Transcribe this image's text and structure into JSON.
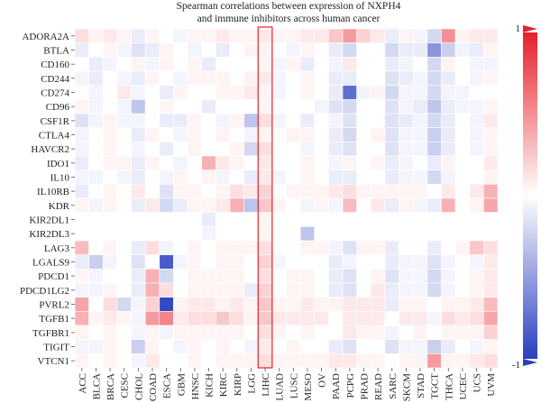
{
  "chart_data": {
    "type": "heatmap",
    "title_lines": [
      "Spearman correlations between expression of NXPH4",
      "and immune inhibitors across human cancer"
    ],
    "rows": [
      "ADORA2A",
      "BTLA",
      "CD160",
      "CD244",
      "CD274",
      "CD96",
      "CSF1R",
      "CTLA4",
      "HAVCR2",
      "IDO1",
      "IL10",
      "IL10RB",
      "KDR",
      "KIR2DL1",
      "KIR2DL3",
      "LAG3",
      "LGALS9",
      "PDCD1",
      "PDCD1LG2",
      "PVRL2",
      "TGFB1",
      "TGFBR1",
      "TIGIT",
      "VTCN1"
    ],
    "columns": [
      "ACC",
      "BLCA",
      "BRCA",
      "CESC",
      "CHOL",
      "COAD",
      "ESCA",
      "GBM",
      "HNSC",
      "KICH",
      "KIRC",
      "KIRP",
      "LGG",
      "LIHC",
      "LUAD",
      "LUSC",
      "MESO",
      "OV",
      "PAAD",
      "PCPG",
      "PRAD",
      "READ",
      "SARC",
      "SKCM",
      "STAD",
      "TGCT",
      "THCA",
      "UCEC",
      "UCS",
      "UVM"
    ],
    "values": [
      [
        0.15,
        0.05,
        0.1,
        0.05,
        -0.1,
        0.05,
        0.0,
        -0.05,
        0.05,
        0.05,
        0.1,
        0.05,
        0.05,
        0.1,
        0.05,
        0.05,
        0.1,
        0.1,
        0.25,
        0.45,
        0.2,
        0.1,
        -0.1,
        0.05,
        -0.05,
        -0.2,
        0.5,
        0.05,
        0.1,
        0.1
      ],
      [
        -0.1,
        0.0,
        0.05,
        -0.05,
        -0.15,
        -0.1,
        0.05,
        0.0,
        -0.05,
        0.0,
        -0.1,
        0.0,
        0.05,
        0.05,
        0.0,
        -0.05,
        0.05,
        0.0,
        -0.1,
        -0.2,
        0.0,
        0.0,
        -0.2,
        -0.1,
        -0.1,
        -0.55,
        -0.25,
        -0.05,
        -0.1,
        0.05
      ],
      [
        0.0,
        -0.1,
        -0.05,
        0.0,
        0.05,
        -0.05,
        0.05,
        0.0,
        0.05,
        -0.1,
        0.0,
        0.0,
        0.0,
        0.05,
        -0.05,
        0.05,
        -0.1,
        0.0,
        -0.05,
        0.1,
        0.0,
        0.0,
        -0.1,
        -0.05,
        0.0,
        -0.2,
        0.05,
        0.0,
        -0.05,
        -0.05
      ],
      [
        -0.05,
        -0.1,
        0.0,
        -0.05,
        -0.1,
        0.05,
        0.0,
        -0.05,
        0.05,
        0.05,
        0.05,
        0.0,
        0.05,
        0.1,
        -0.05,
        0.0,
        0.05,
        0.0,
        -0.1,
        -0.1,
        0.0,
        0.0,
        -0.15,
        -0.1,
        -0.05,
        -0.2,
        -0.1,
        0.0,
        -0.05,
        0.05
      ],
      [
        0.0,
        -0.05,
        0.0,
        0.1,
        -0.05,
        0.0,
        -0.1,
        0.05,
        0.0,
        0.0,
        0.05,
        0.05,
        0.1,
        0.05,
        -0.05,
        0.0,
        0.05,
        0.0,
        -0.1,
        -0.75,
        -0.05,
        0.05,
        -0.2,
        -0.05,
        -0.05,
        -0.2,
        -0.05,
        -0.05,
        0.0,
        0.0
      ],
      [
        0.05,
        -0.05,
        0.0,
        -0.05,
        -0.3,
        0.0,
        0.05,
        0.0,
        0.0,
        -0.1,
        0.0,
        0.0,
        0.0,
        0.05,
        0.0,
        0.0,
        0.0,
        -0.05,
        -0.15,
        -0.2,
        0.0,
        0.0,
        -0.15,
        -0.05,
        -0.1,
        -0.3,
        -0.1,
        -0.05,
        -0.05,
        0.05
      ],
      [
        -0.15,
        -0.05,
        0.05,
        -0.05,
        -0.05,
        0.0,
        -0.1,
        -0.1,
        0.05,
        0.0,
        -0.05,
        0.05,
        -0.3,
        0.15,
        -0.05,
        0.0,
        -0.1,
        0.0,
        -0.05,
        -0.15,
        0.0,
        0.0,
        -0.15,
        -0.1,
        -0.05,
        -0.2,
        -0.1,
        0.0,
        -0.05,
        0.1
      ],
      [
        -0.05,
        0.0,
        0.05,
        0.0,
        -0.1,
        0.05,
        0.0,
        -0.05,
        0.05,
        0.0,
        0.05,
        0.0,
        -0.05,
        0.05,
        0.0,
        0.05,
        0.05,
        0.0,
        -0.1,
        -0.2,
        0.0,
        0.05,
        -0.15,
        -0.05,
        -0.05,
        -0.25,
        -0.1,
        0.0,
        -0.05,
        0.05
      ],
      [
        -0.05,
        0.0,
        0.05,
        0.0,
        -0.05,
        0.0,
        -0.1,
        0.0,
        0.05,
        0.0,
        0.0,
        0.05,
        -0.2,
        0.15,
        0.0,
        0.0,
        -0.05,
        0.0,
        -0.1,
        -0.15,
        0.0,
        0.0,
        -0.15,
        -0.05,
        -0.05,
        -0.25,
        -0.1,
        0.0,
        -0.05,
        0.05
      ],
      [
        -0.1,
        0.0,
        0.05,
        0.05,
        -0.1,
        0.05,
        0.0,
        -0.05,
        0.0,
        0.35,
        0.1,
        0.05,
        0.0,
        0.1,
        0.0,
        0.0,
        0.05,
        0.0,
        -0.05,
        0.05,
        0.0,
        0.05,
        -0.1,
        -0.05,
        0.0,
        -0.1,
        0.05,
        0.0,
        0.0,
        0.1
      ],
      [
        -0.05,
        -0.05,
        0.0,
        -0.05,
        -0.1,
        0.0,
        -0.05,
        0.05,
        0.0,
        0.05,
        -0.05,
        0.0,
        -0.1,
        0.1,
        -0.05,
        0.0,
        0.05,
        0.0,
        -0.1,
        -0.1,
        0.0,
        0.0,
        -0.1,
        -0.05,
        -0.05,
        -0.2,
        -0.05,
        0.0,
        0.0,
        0.05
      ],
      [
        -0.1,
        0.0,
        0.05,
        0.0,
        0.1,
        0.0,
        -0.15,
        0.05,
        0.05,
        0.0,
        0.05,
        0.15,
        0.1,
        0.2,
        0.0,
        0.05,
        0.05,
        0.05,
        0.1,
        0.15,
        0.05,
        0.05,
        0.05,
        0.05,
        0.05,
        0.0,
        0.1,
        0.0,
        0.1,
        0.35
      ],
      [
        0.05,
        -0.05,
        0.05,
        0.0,
        -0.1,
        0.1,
        -0.2,
        -0.1,
        0.05,
        0.05,
        0.1,
        0.35,
        -0.3,
        0.25,
        0.05,
        0.0,
        -0.05,
        0.05,
        -0.05,
        0.3,
        0.0,
        0.1,
        -0.1,
        0.05,
        -0.05,
        -0.1,
        0.35,
        0.0,
        0.05,
        0.4
      ],
      [
        0.0,
        0.0,
        0.0,
        0.0,
        0.0,
        0.0,
        0.0,
        0.0,
        0.0,
        -0.1,
        0.0,
        0.0,
        0.0,
        0.05,
        0.0,
        0.0,
        0.0,
        0.0,
        0.0,
        0.0,
        0.0,
        0.0,
        0.0,
        0.0,
        0.0,
        0.0,
        0.0,
        0.0,
        0.0,
        0.0
      ],
      [
        0.0,
        0.0,
        0.0,
        0.0,
        0.0,
        0.0,
        0.0,
        0.0,
        0.0,
        -0.05,
        0.0,
        0.0,
        0.0,
        0.05,
        0.0,
        0.0,
        -0.3,
        0.0,
        0.0,
        0.0,
        0.0,
        0.0,
        0.0,
        0.0,
        0.0,
        0.0,
        0.0,
        0.0,
        0.0,
        0.0
      ],
      [
        0.3,
        0.0,
        0.05,
        0.0,
        -0.1,
        0.15,
        -0.05,
        0.0,
        0.05,
        0.0,
        0.05,
        0.05,
        0.05,
        0.15,
        0.0,
        0.0,
        0.05,
        0.05,
        -0.05,
        -0.15,
        0.05,
        0.05,
        -0.1,
        0.0,
        0.0,
        -0.1,
        0.0,
        0.05,
        0.25,
        0.15
      ],
      [
        -0.1,
        -0.25,
        -0.05,
        0.0,
        -0.15,
        0.0,
        -0.85,
        -0.05,
        0.05,
        0.0,
        0.05,
        0.05,
        0.0,
        0.2,
        -0.05,
        0.0,
        0.0,
        0.0,
        -0.1,
        -0.05,
        0.0,
        0.0,
        -0.1,
        -0.05,
        -0.05,
        -0.15,
        -0.05,
        0.0,
        -0.05,
        0.1
      ],
      [
        0.05,
        -0.05,
        0.0,
        0.0,
        -0.1,
        0.35,
        -0.2,
        0.0,
        0.05,
        0.05,
        0.05,
        0.05,
        0.0,
        0.15,
        0.0,
        0.05,
        0.05,
        0.0,
        -0.1,
        -0.15,
        0.0,
        0.05,
        -0.15,
        -0.05,
        -0.05,
        -0.2,
        -0.05,
        0.0,
        0.05,
        0.1
      ],
      [
        -0.05,
        -0.05,
        0.05,
        0.0,
        -0.1,
        0.35,
        0.15,
        0.0,
        0.05,
        0.05,
        0.05,
        0.05,
        -0.1,
        0.2,
        0.0,
        0.05,
        0.05,
        0.0,
        -0.1,
        -0.15,
        0.0,
        0.1,
        -0.1,
        -0.05,
        -0.05,
        -0.2,
        -0.05,
        0.0,
        0.05,
        0.1
      ],
      [
        0.4,
        0.0,
        0.15,
        -0.2,
        -0.05,
        0.2,
        -0.95,
        0.05,
        0.1,
        0.1,
        0.05,
        0.1,
        0.05,
        0.25,
        0.05,
        0.05,
        0.1,
        0.05,
        0.05,
        0.1,
        0.1,
        0.1,
        -0.1,
        0.05,
        0.05,
        0.0,
        0.05,
        0.05,
        0.1,
        0.3
      ],
      [
        0.35,
        0.05,
        0.1,
        0.05,
        -0.05,
        0.45,
        0.55,
        0.1,
        0.15,
        0.15,
        0.25,
        0.15,
        0.05,
        0.25,
        0.1,
        0.1,
        0.1,
        0.1,
        0.0,
        0.1,
        0.1,
        0.1,
        0.0,
        0.1,
        0.1,
        -0.05,
        0.15,
        0.1,
        0.15,
        0.4
      ],
      [
        0.05,
        0.0,
        0.05,
        0.0,
        -0.05,
        0.05,
        -0.05,
        0.05,
        0.05,
        0.05,
        0.05,
        0.05,
        0.0,
        0.15,
        0.05,
        0.0,
        0.05,
        0.0,
        0.0,
        0.1,
        0.05,
        0.05,
        -0.05,
        0.0,
        0.05,
        0.0,
        0.05,
        0.05,
        0.05,
        0.2
      ],
      [
        -0.05,
        -0.05,
        0.05,
        0.0,
        -0.25,
        0.05,
        0.0,
        -0.05,
        0.05,
        0.0,
        0.05,
        0.0,
        -0.05,
        0.1,
        0.0,
        0.05,
        0.0,
        0.0,
        -0.1,
        -0.15,
        0.0,
        0.0,
        -0.15,
        -0.05,
        -0.05,
        -0.25,
        -0.1,
        0.0,
        -0.05,
        0.05
      ],
      [
        0.05,
        0.0,
        0.05,
        0.0,
        -0.05,
        0.1,
        0.0,
        0.0,
        0.05,
        0.0,
        0.05,
        0.05,
        0.05,
        0.15,
        0.05,
        0.05,
        0.05,
        0.05,
        0.1,
        0.1,
        0.05,
        0.05,
        0.0,
        0.05,
        0.05,
        0.45,
        0.05,
        0.05,
        0.1,
        0.15
      ]
    ],
    "highlight_column": "LIHC",
    "color_scale": {
      "min": -1,
      "max": 1,
      "low_color": "#2a3fbf",
      "mid_color": "#ffffff",
      "high_color": "#e8202a"
    },
    "scale_labels": {
      "max": "1",
      "min": "-1"
    }
  },
  "colors": {
    "highlight_border": "#e0252a",
    "grid_line": "#ffffff"
  }
}
